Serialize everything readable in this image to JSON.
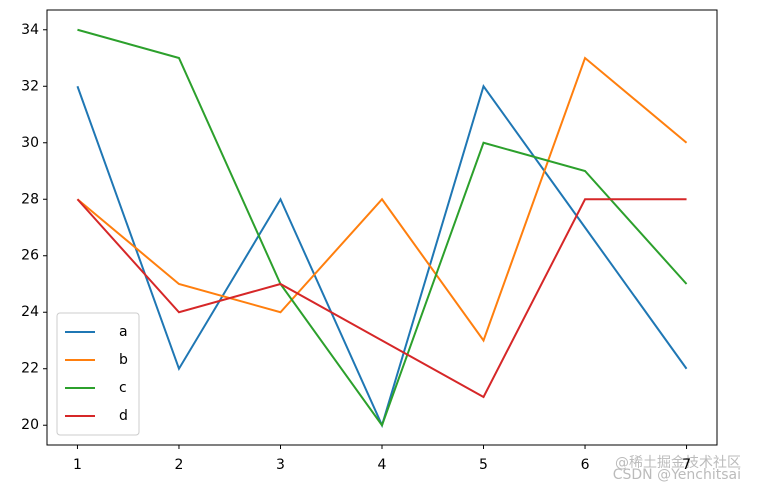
{
  "chart_data": {
    "type": "line",
    "x": [
      1,
      2,
      3,
      4,
      5,
      6,
      7
    ],
    "series": [
      {
        "name": "a",
        "color": "#1f77b4",
        "values": [
          32,
          22,
          28,
          20,
          32,
          27,
          22
        ]
      },
      {
        "name": "b",
        "color": "#ff7f0e",
        "values": [
          28,
          25,
          24,
          28,
          23,
          33,
          30
        ]
      },
      {
        "name": "c",
        "color": "#2ca02c",
        "values": [
          34,
          33,
          25,
          20,
          30,
          29,
          25
        ]
      },
      {
        "name": "d",
        "color": "#d62728",
        "values": [
          28,
          24,
          25,
          23,
          21,
          28,
          28
        ]
      }
    ],
    "xlim": [
      0.7,
      7.3
    ],
    "xticks": [
      1,
      2,
      3,
      4,
      5,
      6,
      7
    ],
    "ylim": [
      19.3,
      34.7
    ],
    "yticks": [
      20,
      22,
      24,
      26,
      28,
      30,
      32,
      34
    ],
    "legend": "lower left",
    "grid": false
  },
  "watermark": [
    "@稀土掘金技术社区",
    "CSDN @Yenchitsai"
  ]
}
